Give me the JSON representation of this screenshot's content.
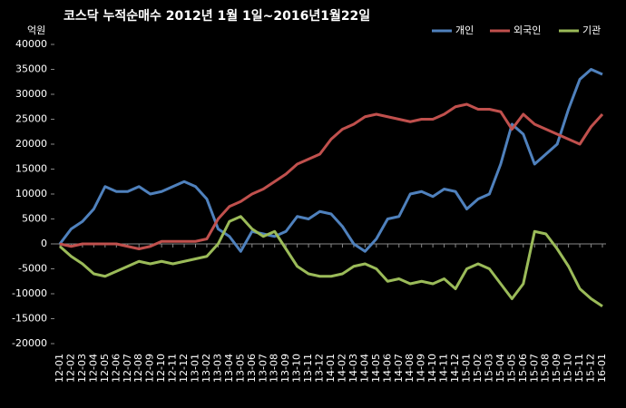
{
  "chart_data": {
    "type": "line",
    "title": "코스닥 누적순매수 2012년 1월 1일~2016년1월22일",
    "y_label": "억원",
    "categories": [
      "12-01",
      "12-02",
      "12-03",
      "12-04",
      "12-05",
      "12-06",
      "12-07",
      "12-08",
      "12-09",
      "12-10",
      "12-11",
      "12-12",
      "13-01",
      "13-02",
      "13-03",
      "13-04",
      "13-05",
      "13-06",
      "13-07",
      "13-08",
      "13-09",
      "13-10",
      "13-11",
      "13-12",
      "14-01",
      "14-02",
      "14-03",
      "14-04",
      "14-05",
      "14-06",
      "14-07",
      "14-08",
      "14-09",
      "14-10",
      "14-11",
      "14-12",
      "15-01",
      "15-02",
      "15-03",
      "15-04",
      "15-05",
      "15-06",
      "15-07",
      "15-08",
      "15-09",
      "15-10",
      "15-11",
      "15-12",
      "16-01"
    ],
    "series": [
      {
        "name": "개인",
        "color": "#4f81bd",
        "values": [
          0,
          3000,
          4500,
          7000,
          11500,
          10500,
          10500,
          11500,
          10000,
          10500,
          11500,
          12500,
          11500,
          9000,
          3000,
          1500,
          -1500,
          2500,
          2000,
          1500,
          2500,
          5500,
          5000,
          6500,
          6000,
          3500,
          0,
          -1500,
          1000,
          5000,
          5500,
          10000,
          10500,
          9500,
          11000,
          10500,
          7000,
          9000,
          10000,
          16000,
          24000,
          22000,
          16000,
          18000,
          20000,
          27000,
          33000,
          35000,
          34000
        ]
      },
      {
        "name": "외국인",
        "color": "#c0504d",
        "values": [
          0,
          -500,
          0,
          0,
          0,
          0,
          -500,
          -1000,
          -500,
          500,
          500,
          500,
          500,
          1000,
          5000,
          7500,
          8500,
          10000,
          11000,
          12500,
          14000,
          16000,
          17000,
          18000,
          21000,
          23000,
          24000,
          25500,
          26000,
          25500,
          25000,
          24500,
          25000,
          25000,
          26000,
          27500,
          28000,
          27000,
          27000,
          26500,
          23000,
          26000,
          24000,
          23000,
          22000,
          21000,
          20000,
          23500,
          26000
        ]
      },
      {
        "name": "기관",
        "color": "#9bbb59",
        "values": [
          -500,
          -2500,
          -4000,
          -6000,
          -6500,
          -5500,
          -4500,
          -3500,
          -4000,
          -3500,
          -4000,
          -3500,
          -3000,
          -2500,
          0,
          4500,
          5500,
          3000,
          1500,
          2500,
          -1000,
          -4500,
          -6000,
          -6500,
          -6500,
          -6000,
          -4500,
          -4000,
          -5000,
          -7500,
          -7000,
          -8000,
          -7500,
          -8000,
          -7000,
          -9000,
          -5000,
          -4000,
          -5000,
          -8000,
          -11000,
          -8000,
          2500,
          2000,
          -1000,
          -4500,
          -9000,
          -11000,
          -12500
        ]
      }
    ],
    "ylim": [
      -20000,
      40000
    ],
    "yticks": [
      -20000,
      -15000,
      -10000,
      -5000,
      0,
      5000,
      10000,
      15000,
      20000,
      25000,
      30000,
      35000,
      40000
    ],
    "legend": "top-right"
  }
}
